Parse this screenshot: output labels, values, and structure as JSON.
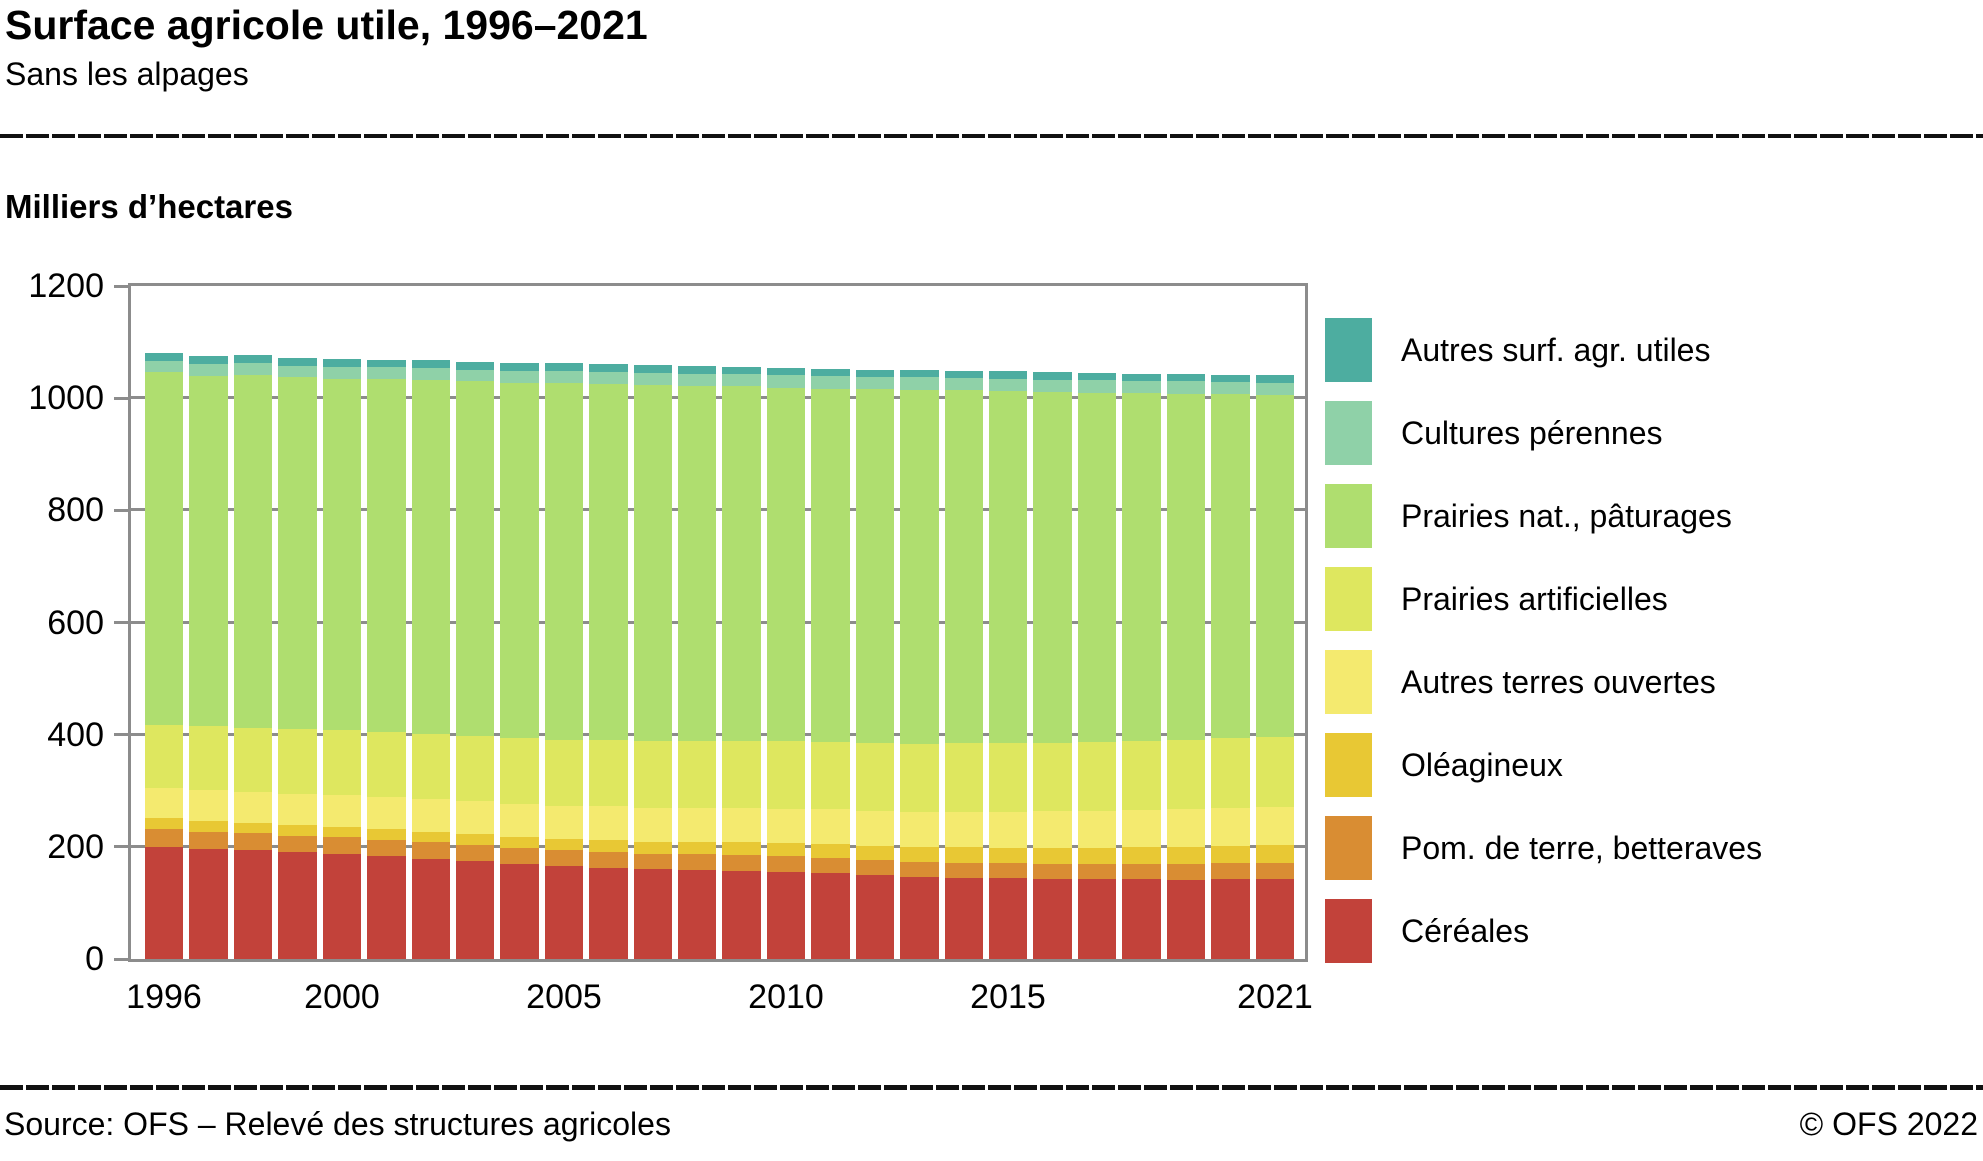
{
  "header": {
    "title": "Surface agricole utile, 1996–2021",
    "subtitle": "Sans les alpages"
  },
  "axis_title": "Milliers d’hectares",
  "footer": {
    "source": "Source: OFS – Relevé des structures agricoles",
    "copyright": "© OFS 2022"
  },
  "colors": {
    "axis_gray": "#8C8C8C",
    "text": "#000000",
    "background": "#FFFFFF"
  },
  "chart_data": {
    "type": "bar",
    "stacked": true,
    "title": "Surface agricole utile, 1996–2021",
    "subtitle": "Sans les alpages",
    "ylabel": "Milliers d’hectares",
    "xlabel": "",
    "ylim": [
      0,
      1200
    ],
    "y_ticks": [
      0,
      200,
      400,
      600,
      800,
      1000,
      1200
    ],
    "y_gridlines": [
      200,
      400,
      600,
      800,
      1000
    ],
    "grid": "horizontal-behind-bars",
    "legend_position": "right",
    "x": [
      1996,
      1997,
      1998,
      1999,
      2000,
      2001,
      2002,
      2003,
      2004,
      2005,
      2006,
      2007,
      2008,
      2009,
      2010,
      2011,
      2012,
      2013,
      2014,
      2015,
      2016,
      2017,
      2018,
      2019,
      2020,
      2021
    ],
    "x_tick_labels": [
      {
        "label": "1996",
        "year": 1996
      },
      {
        "label": "2000",
        "year": 2000
      },
      {
        "label": "2005",
        "year": 2005
      },
      {
        "label": "2010",
        "year": 2010
      },
      {
        "label": "2015",
        "year": 2015
      },
      {
        "label": "2021",
        "year": 2021
      }
    ],
    "legend_top_to_bottom": [
      "Autres surf. agr. utiles",
      "Cultures pérennes",
      "Prairies nat., pâturages",
      "Prairies artificielles",
      "Autres terres ouvertes",
      "Oléagineux",
      "Pom. de terre, betteraves",
      "Céréales"
    ],
    "series": [
      {
        "key": "cereales",
        "name": "Céréales",
        "color": "#C2423A",
        "values": [
          200,
          196,
          194,
          190,
          187,
          184,
          179,
          174,
          170,
          166,
          163,
          160,
          159,
          157,
          155,
          153,
          149,
          146,
          145,
          144,
          143,
          142,
          142,
          141,
          142,
          142
        ]
      },
      {
        "key": "pom-de-terre-betteraves",
        "name": "Pom. de terre, betteraves",
        "color": "#D98D33",
        "values": [
          31,
          31,
          30,
          30,
          30,
          29,
          29,
          29,
          28,
          28,
          28,
          28,
          28,
          28,
          28,
          28,
          27,
          27,
          27,
          27,
          27,
          27,
          27,
          28,
          29,
          30
        ]
      },
      {
        "key": "oleagineux",
        "name": "Oléagineux",
        "color": "#E8C834",
        "values": [
          21,
          20,
          19,
          19,
          18,
          19,
          19,
          20,
          20,
          20,
          21,
          21,
          22,
          23,
          23,
          24,
          25,
          26,
          27,
          27,
          28,
          29,
          30,
          30,
          31,
          31
        ]
      },
      {
        "key": "autres-terres-ouvertes",
        "name": "Autres terres ouvertes",
        "color": "#F4EA6F",
        "values": [
          53,
          54,
          55,
          56,
          57,
          57,
          58,
          58,
          59,
          59,
          60,
          60,
          61,
          61,
          62,
          62,
          63,
          64,
          64,
          65,
          66,
          66,
          67,
          68,
          68,
          69
        ]
      },
      {
        "key": "prairies-artificielles",
        "name": "Prairies artificielles",
        "color": "#DEE75F",
        "values": [
          113,
          114,
          114,
          115,
          116,
          116,
          117,
          117,
          118,
          118,
          119,
          119,
          119,
          120,
          120,
          120,
          121,
          121,
          122,
          122,
          122,
          123,
          123,
          123,
          124,
          124
        ]
      },
      {
        "key": "prairies-nat-paturages",
        "name": "Prairies nat., pâturages",
        "color": "#AFDE6F",
        "values": [
          628,
          625,
          630,
          627,
          627,
          629,
          631,
          632,
          633,
          636,
          635,
          636,
          633,
          632,
          631,
          630,
          631,
          631,
          629,
          628,
          625,
          623,
          620,
          618,
          613,
          609
        ]
      },
      {
        "key": "cultures-perennes",
        "name": "Cultures pérennes",
        "color": "#8FD1A8",
        "values": [
          21,
          21,
          21,
          21,
          21,
          21,
          21,
          21,
          21,
          21,
          21,
          21,
          21,
          22,
          22,
          22,
          22,
          22,
          22,
          22,
          22,
          22,
          22,
          22,
          22,
          23
        ]
      },
      {
        "key": "autres-surf-agr-utiles",
        "name": "Autres surf. agr. utiles",
        "color": "#4DADA0",
        "values": [
          14,
          14,
          14,
          14,
          14,
          14,
          14,
          14,
          14,
          14,
          14,
          14,
          14,
          13,
          13,
          13,
          13,
          13,
          13,
          13,
          13,
          13,
          13,
          13,
          13,
          13
        ]
      }
    ]
  }
}
